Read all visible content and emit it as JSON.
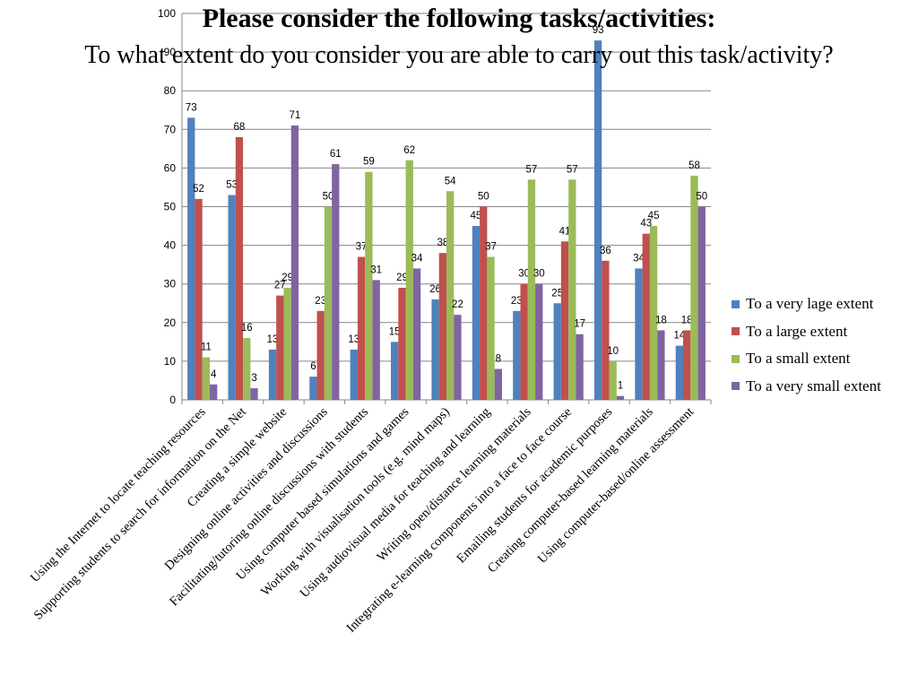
{
  "title": "Please consider the following tasks/activities:",
  "subtitle": "To what extent do you consider you are able to carry out this task/activity?",
  "chart_data": {
    "type": "bar",
    "categories": [
      "Using the Internet to locate teaching resources",
      "Supporting students to search for information on the Net",
      "Creating a simple website",
      "Designing online activities and discussions",
      "Facilitating/tutoring online discussions with students",
      "Using computer based simulations and games",
      "Working with visualisation tools (e.g. mind maps)",
      "Using audiovisual media for teaching and learning",
      "Writing open/distance learning materials",
      "Integrating e-learning components into a face to face course",
      "Emailing students for academic purposes",
      "Creating computer-based learning materials",
      "Using computer-based/online assessment"
    ],
    "series": [
      {
        "name": "To a very lage extent",
        "color": "#4F81BD",
        "values": [
          73,
          53,
          13,
          6,
          13,
          15,
          26,
          45,
          23,
          25,
          93,
          34,
          14
        ]
      },
      {
        "name": "To a large extent",
        "color": "#C0504D",
        "values": [
          52,
          68,
          27,
          23,
          37,
          29,
          38,
          50,
          30,
          41,
          36,
          43,
          18
        ]
      },
      {
        "name": "To a small extent",
        "color": "#9BBB59",
        "values": [
          11,
          16,
          29,
          50,
          59,
          62,
          54,
          37,
          57,
          57,
          10,
          45,
          58
        ]
      },
      {
        "name": "To a very small extent",
        "color": "#8064A2",
        "values": [
          4,
          3,
          71,
          61,
          31,
          34,
          22,
          8,
          30,
          17,
          1,
          18,
          50
        ]
      }
    ],
    "ylim": [
      0,
      100
    ],
    "yticks": [
      0,
      10,
      20,
      30,
      40,
      50,
      60,
      70,
      80,
      90,
      100
    ],
    "grid": true,
    "legend_position": "right",
    "data_labels": true
  }
}
